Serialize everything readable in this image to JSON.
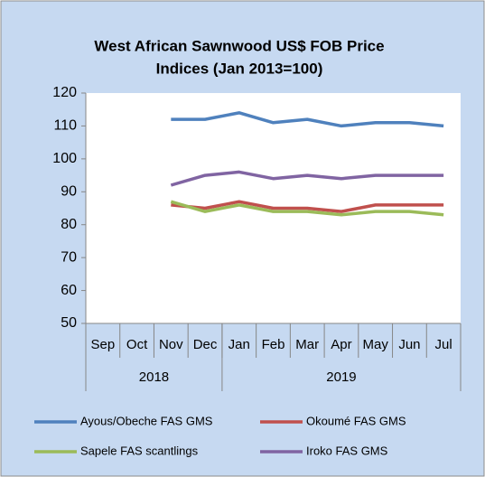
{
  "chart_data": {
    "type": "line",
    "title": [
      "West African Sawnwood US$ FOB Price",
      "Indices (Jan 2013=100)"
    ],
    "categories": [
      "Sep",
      "Oct",
      "Nov",
      "Dec",
      "Jan",
      "Feb",
      "Mar",
      "Apr",
      "May",
      "Jun",
      "Jul"
    ],
    "groups": [
      {
        "label": "2018",
        "size": 4
      },
      {
        "label": "2019",
        "size": 7
      }
    ],
    "series": [
      {
        "name": "Ayous/Obeche  FAS GMS",
        "color": "#4f81bd",
        "values": [
          null,
          null,
          112,
          112,
          114,
          111,
          112,
          110,
          111,
          111,
          110
        ]
      },
      {
        "name": "Okoumé  FAS GMS",
        "color": "#c0504d",
        "values": [
          null,
          null,
          86,
          85,
          87,
          85,
          85,
          84,
          86,
          86,
          86
        ]
      },
      {
        "name": "Sapele FAS scantlings",
        "color": "#9bbb59",
        "values": [
          null,
          null,
          87,
          84,
          86,
          84,
          84,
          83,
          84,
          84,
          83
        ]
      },
      {
        "name": "Iroko FAS GMS",
        "color": "#8064a2",
        "values": [
          null,
          null,
          92,
          95,
          96,
          94,
          95,
          94,
          95,
          95,
          95
        ]
      }
    ],
    "ylim": [
      50,
      120
    ],
    "yticks": [
      50,
      60,
      70,
      80,
      90,
      100,
      110,
      120
    ],
    "grid": false,
    "legend": "bottom"
  }
}
